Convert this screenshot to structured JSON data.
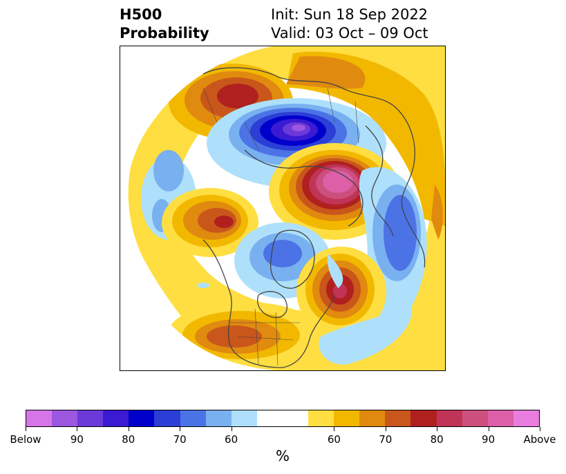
{
  "title": {
    "variable": "H500",
    "product": "Probability",
    "init": "Init: Sun 18 Sep 2022",
    "valid": "Valid: 03 Oct – 09 Oct"
  },
  "colorbar": {
    "unit": "%",
    "colors": [
      "#d675e8",
      "#9c56e0",
      "#6b39d8",
      "#3a1ad2",
      "#0000cc",
      "#2b3ed6",
      "#4b73e5",
      "#79b0f0",
      "#aee0fb",
      "#ffffff",
      "#ffffff",
      "#ffde41",
      "#f2b800",
      "#e08a10",
      "#c9561a",
      "#b0201f",
      "#c03458",
      "#cc4f7e",
      "#dc5fa8",
      "#e97ddf"
    ],
    "labels": [
      "Below",
      "90",
      "80",
      "70",
      "60",
      "60",
      "70",
      "80",
      "90",
      "Above"
    ]
  },
  "map": {
    "colors": {
      "yellow": "#ffde41",
      "gold": "#f2b800",
      "orange": "#e08a10",
      "darkorange": "#c9561a",
      "red": "#b0201f",
      "crimson": "#c03458",
      "rose": "#cc4f7e",
      "pink": "#dc5fa8",
      "lightblue": "#aee0fb",
      "skyblue": "#79b0f0",
      "midblue": "#4b73e5",
      "royalblue": "#2b3ed6",
      "navy": "#0000cc",
      "indigo": "#3a1ad2",
      "violet": "#6b39d8",
      "purple": "#9c56e0",
      "land": "#444444"
    }
  }
}
